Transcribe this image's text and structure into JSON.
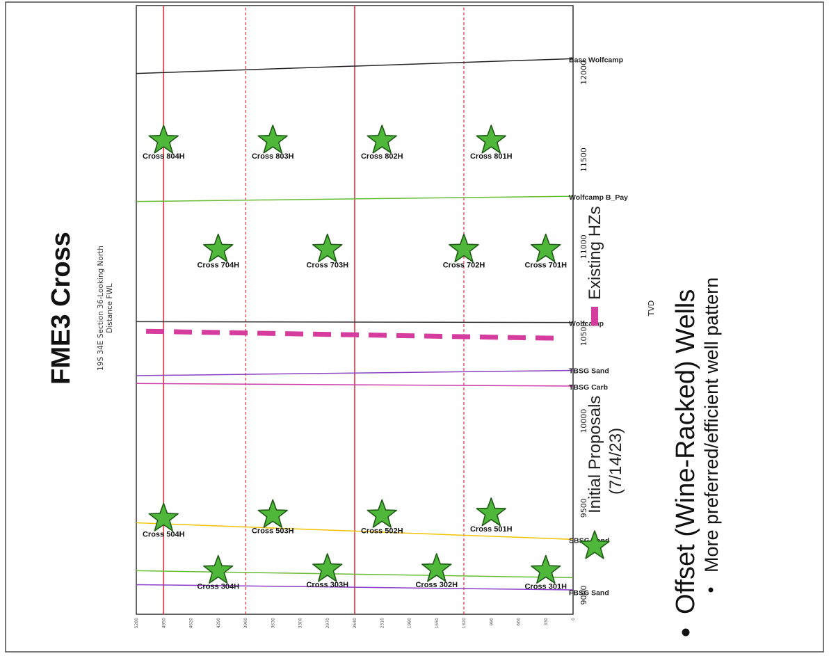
{
  "title": "FME3 Cross",
  "subtitle_lines": [
    "19S 34E Section 36-Looking North",
    "Distance FWL"
  ],
  "y_axis_label": "TVD",
  "y_ticks": [
    "9000",
    "9500",
    "10000",
    "10500",
    "11000",
    "11500",
    "12000"
  ],
  "x_ticks": [
    "0",
    "330",
    "660",
    "990",
    "1320",
    "1650",
    "1980",
    "2310",
    "2640",
    "2970",
    "3300",
    "3630",
    "3960",
    "4290",
    "4620",
    "4950",
    "5280"
  ],
  "formations": [
    {
      "name": "FBSG Sand",
      "color": "#8c3cc8"
    },
    {
      "name": "SBSG Sand",
      "color": "#f2c200"
    },
    {
      "name": "TBSG Carb",
      "color": "#cc3caa"
    },
    {
      "name": "TBSG Sand",
      "color": "#8a40c0"
    },
    {
      "name": "Wolfcamp",
      "color": "#333333"
    },
    {
      "name": "Wolfcamp B_Pay",
      "color": "#66bb33"
    },
    {
      "name": "Base Wolfcamp",
      "color": "#222222"
    }
  ],
  "wells": [
    {
      "name": "Cross 301H",
      "x": 330,
      "tvd": 9140
    },
    {
      "name": "Cross 302H",
      "x": 1650,
      "tvd": 9150
    },
    {
      "name": "Cross 303H",
      "x": 2970,
      "tvd": 9150
    },
    {
      "name": "Cross 304H",
      "x": 4290,
      "tvd": 9140
    },
    {
      "name": "Cross 501H",
      "x": 990,
      "tvd": 9470
    },
    {
      "name": "Cross 502H",
      "x": 2310,
      "tvd": 9460
    },
    {
      "name": "Cross 503H",
      "x": 3630,
      "tvd": 9460
    },
    {
      "name": "Cross 504H",
      "x": 4950,
      "tvd": 9440
    },
    {
      "name": "Cross 701H",
      "x": 330,
      "tvd": 10985
    },
    {
      "name": "Cross 702H",
      "x": 1320,
      "tvd": 10985
    },
    {
      "name": "Cross 703H",
      "x": 2970,
      "tvd": 10985
    },
    {
      "name": "Cross 704H",
      "x": 4290,
      "tvd": 10985
    },
    {
      "name": "Cross 801H",
      "x": 990,
      "tvd": 11610
    },
    {
      "name": "Cross 802H",
      "x": 2310,
      "tvd": 11610
    },
    {
      "name": "Cross 803H",
      "x": 3630,
      "tvd": 11610
    },
    {
      "name": "Cross 804H",
      "x": 4950,
      "tvd": 11610
    }
  ],
  "section_lines_solid_x": [
    2640,
    4950
  ],
  "section_lines_dashed_x": [
    1320,
    3960
  ],
  "legend": {
    "initial_proposals": "Initial Proposals",
    "initial_proposals_date": "(7/14/23)",
    "existing_hzs": "Existing HZs"
  },
  "heading": "Offset (Wine-Racked) Wells",
  "bullet": "More preferred/efficient well pattern",
  "colors": {
    "section_line": "#e03040",
    "existing_hz": "#d63c9e",
    "star_fill": "#4fb83a"
  }
}
